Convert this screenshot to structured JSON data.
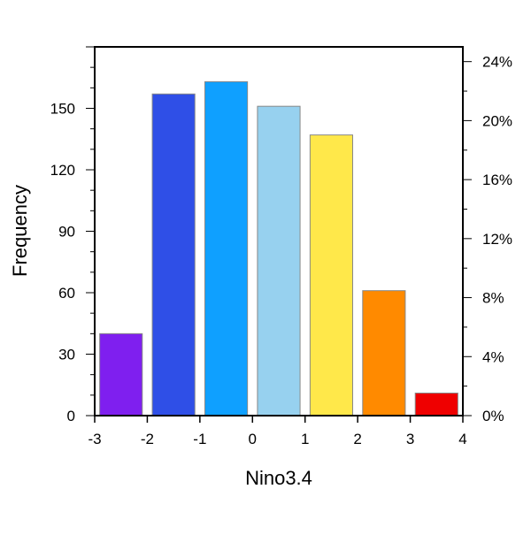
{
  "chart_data": {
    "type": "bar",
    "title": "",
    "xlabel": "Nino3.4",
    "ylabel": "Frequency",
    "bin_edges": [
      -3,
      -2,
      -1,
      0,
      1,
      2,
      3,
      4
    ],
    "values": [
      40,
      157,
      163,
      151,
      137,
      61,
      11
    ],
    "colors": [
      "#7f1fef",
      "#2f4fe7",
      "#0fa0ff",
      "#97d1ef",
      "#ffe84a",
      "#ff8a00",
      "#ef0000"
    ],
    "xlim": [
      -3,
      4
    ],
    "ylim": [
      0,
      180
    ],
    "xticks": [
      "-3",
      "-2",
      "-1",
      "0",
      "1",
      "2",
      "3",
      "4"
    ],
    "yticks": [
      "0",
      "30",
      "60",
      "90",
      "120",
      "150"
    ],
    "y2ticks": [
      "0%",
      "4%",
      "8%",
      "12%",
      "16%",
      "20%",
      "24%"
    ],
    "y2_total": 720,
    "grid": false
  }
}
